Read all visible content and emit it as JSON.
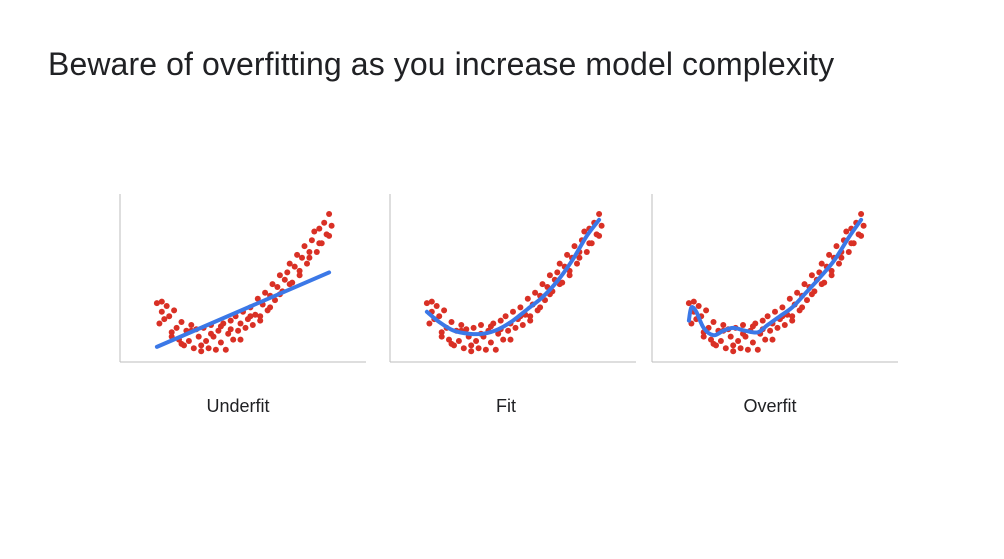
{
  "title": "Beware of overfitting as you increase model complexity",
  "colors": {
    "points": "#d93025",
    "fit_line": "#3b78e7",
    "axis": "#bdbdbd",
    "text": "#202124"
  },
  "chart_data": [
    {
      "type": "scatter",
      "title": "Underfit",
      "model": "linear",
      "xlim": [
        0,
        1
      ],
      "ylim": [
        0,
        1
      ],
      "grid": false,
      "fit": {
        "x": [
          0.15,
          0.85
        ],
        "y": [
          0.09,
          0.6
        ]
      }
    },
    {
      "type": "scatter",
      "title": "Fit",
      "model": "quadratic",
      "xlim": [
        0,
        1
      ],
      "ylim": [
        0,
        1
      ],
      "grid": false,
      "fit": {
        "x": [
          0.15,
          0.2,
          0.26,
          0.32,
          0.38,
          0.44,
          0.5,
          0.56,
          0.62,
          0.68,
          0.74,
          0.8,
          0.85
        ],
        "y": [
          0.33,
          0.26,
          0.2,
          0.18,
          0.18,
          0.21,
          0.27,
          0.35,
          0.43,
          0.54,
          0.68,
          0.85,
          0.96
        ]
      }
    },
    {
      "type": "scatter",
      "title": "Overfit",
      "model": "high-degree polynomial",
      "xlim": [
        0,
        1
      ],
      "ylim": [
        0,
        1
      ],
      "grid": false,
      "fit": {
        "x": [
          0.15,
          0.16,
          0.18,
          0.21,
          0.25,
          0.29,
          0.33,
          0.38,
          0.43,
          0.47,
          0.52,
          0.57,
          0.62,
          0.68,
          0.74,
          0.8,
          0.85
        ],
        "y": [
          0.27,
          0.36,
          0.33,
          0.22,
          0.17,
          0.2,
          0.22,
          0.2,
          0.19,
          0.24,
          0.3,
          0.36,
          0.45,
          0.56,
          0.68,
          0.84,
          0.96
        ]
      }
    }
  ],
  "points": {
    "x": [
      0.15,
      0.16,
      0.17,
      0.18,
      0.19,
      0.2,
      0.21,
      0.22,
      0.23,
      0.24,
      0.25,
      0.26,
      0.27,
      0.28,
      0.29,
      0.3,
      0.31,
      0.32,
      0.33,
      0.34,
      0.35,
      0.36,
      0.37,
      0.38,
      0.39,
      0.4,
      0.41,
      0.42,
      0.43,
      0.44,
      0.45,
      0.46,
      0.47,
      0.48,
      0.49,
      0.5,
      0.51,
      0.52,
      0.53,
      0.54,
      0.55,
      0.56,
      0.57,
      0.58,
      0.59,
      0.6,
      0.61,
      0.62,
      0.63,
      0.64,
      0.65,
      0.66,
      0.67,
      0.68,
      0.69,
      0.7,
      0.71,
      0.72,
      0.73,
      0.74,
      0.75,
      0.76,
      0.77,
      0.78,
      0.79,
      0.8,
      0.81,
      0.82,
      0.83,
      0.84,
      0.85,
      0.86,
      0.17,
      0.21,
      0.25,
      0.29,
      0.33,
      0.37,
      0.41,
      0.45,
      0.49,
      0.53,
      0.57,
      0.61,
      0.65,
      0.69,
      0.73,
      0.77,
      0.81,
      0.85
    ],
    "y": [
      0.39,
      0.25,
      0.4,
      0.28,
      0.37,
      0.3,
      0.19,
      0.34,
      0.22,
      0.14,
      0.26,
      0.1,
      0.2,
      0.13,
      0.24,
      0.08,
      0.21,
      0.16,
      0.06,
      0.22,
      0.13,
      0.08,
      0.24,
      0.16,
      0.07,
      0.2,
      0.12,
      0.25,
      0.07,
      0.18,
      0.27,
      0.14,
      0.3,
      0.2,
      0.25,
      0.33,
      0.22,
      0.28,
      0.36,
      0.24,
      0.31,
      0.42,
      0.3,
      0.38,
      0.46,
      0.34,
      0.44,
      0.52,
      0.41,
      0.5,
      0.58,
      0.47,
      0.55,
      0.6,
      0.66,
      0.53,
      0.64,
      0.72,
      0.61,
      0.7,
      0.78,
      0.66,
      0.74,
      0.82,
      0.88,
      0.74,
      0.9,
      0.8,
      0.94,
      0.86,
      1.0,
      0.92,
      0.33,
      0.16,
      0.11,
      0.2,
      0.1,
      0.18,
      0.23,
      0.21,
      0.14,
      0.3,
      0.27,
      0.36,
      0.45,
      0.52,
      0.58,
      0.7,
      0.8,
      0.85
    ]
  }
}
